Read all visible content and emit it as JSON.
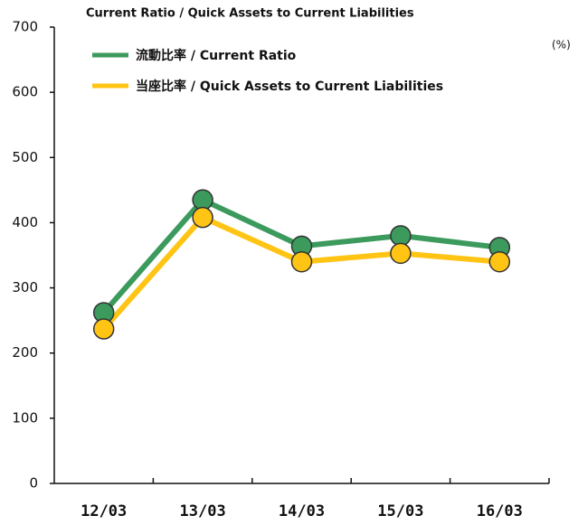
{
  "chart_data": {
    "type": "line",
    "title": "Current Ratio / Quick Assets to Current Liabilities",
    "y_label": "(%)",
    "categories": [
      "12/03",
      "13/03",
      "14/03",
      "15/03",
      "16/03"
    ],
    "series": [
      {
        "name": "流動比率 / Current Ratio",
        "color": "#3b9a5c",
        "values": [
          262,
          435,
          364,
          380,
          362
        ]
      },
      {
        "name": "当座比率 / Quick Assets to Current Liabilities",
        "color": "#ffc414",
        "values": [
          237,
          408,
          340,
          353,
          340
        ]
      }
    ],
    "ylim": [
      0,
      700
    ],
    "yticks": [
      0,
      100,
      200,
      300,
      400,
      500,
      600,
      700
    ],
    "grid": false
  }
}
